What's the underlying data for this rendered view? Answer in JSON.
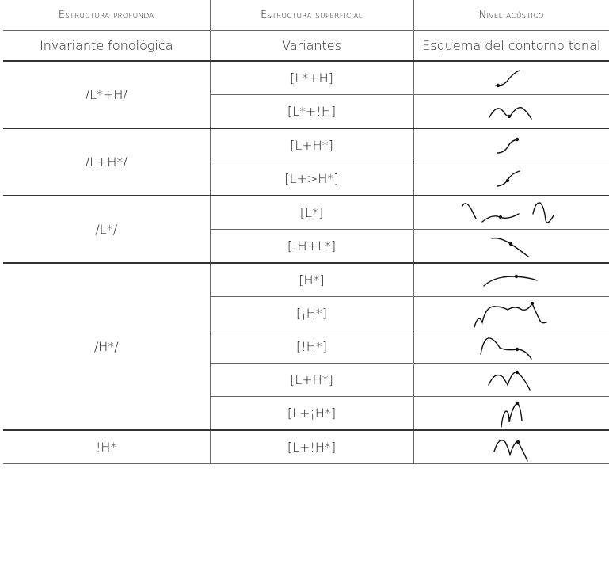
{
  "header": {
    "col1": "Estructura profunda",
    "col2": "Estructura superficial",
    "col3": "Nivel acústico"
  },
  "subheader": {
    "col1": "Invariante fonológica",
    "col2": "Variantes",
    "col3": "Esquema del contorno tonal"
  },
  "groups": [
    {
      "label": "/L*+H/",
      "variants": [
        "[L*+H]",
        "[L*+!H]"
      ]
    },
    {
      "label": "/L+H*/",
      "variants": [
        "[L+H*]",
        "[L+>H*]"
      ]
    },
    {
      "label": "/L*/",
      "variants": [
        "[L*]",
        "[!H+L*]"
      ]
    },
    {
      "label": "/H*/",
      "variants": [
        "[H*]",
        "[¡H*]",
        "[!H*]",
        "[L+H*]",
        "[L+¡H*]"
      ]
    },
    {
      "label": "!H*",
      "variants": [
        "[L+!H*]"
      ]
    }
  ],
  "contour_icons": [
    "rise-low-dot",
    "wave-low-dot",
    "rise-high-dot",
    "rise-mid-dot",
    "fall-valley-rise",
    "fall-mid-dot",
    "flat-arch-dot",
    "rise-plateau-peak",
    "peak-fall-dot",
    "double-peak-dot",
    "steep-double-peak-dot",
    "double-peak-mid-dot"
  ]
}
